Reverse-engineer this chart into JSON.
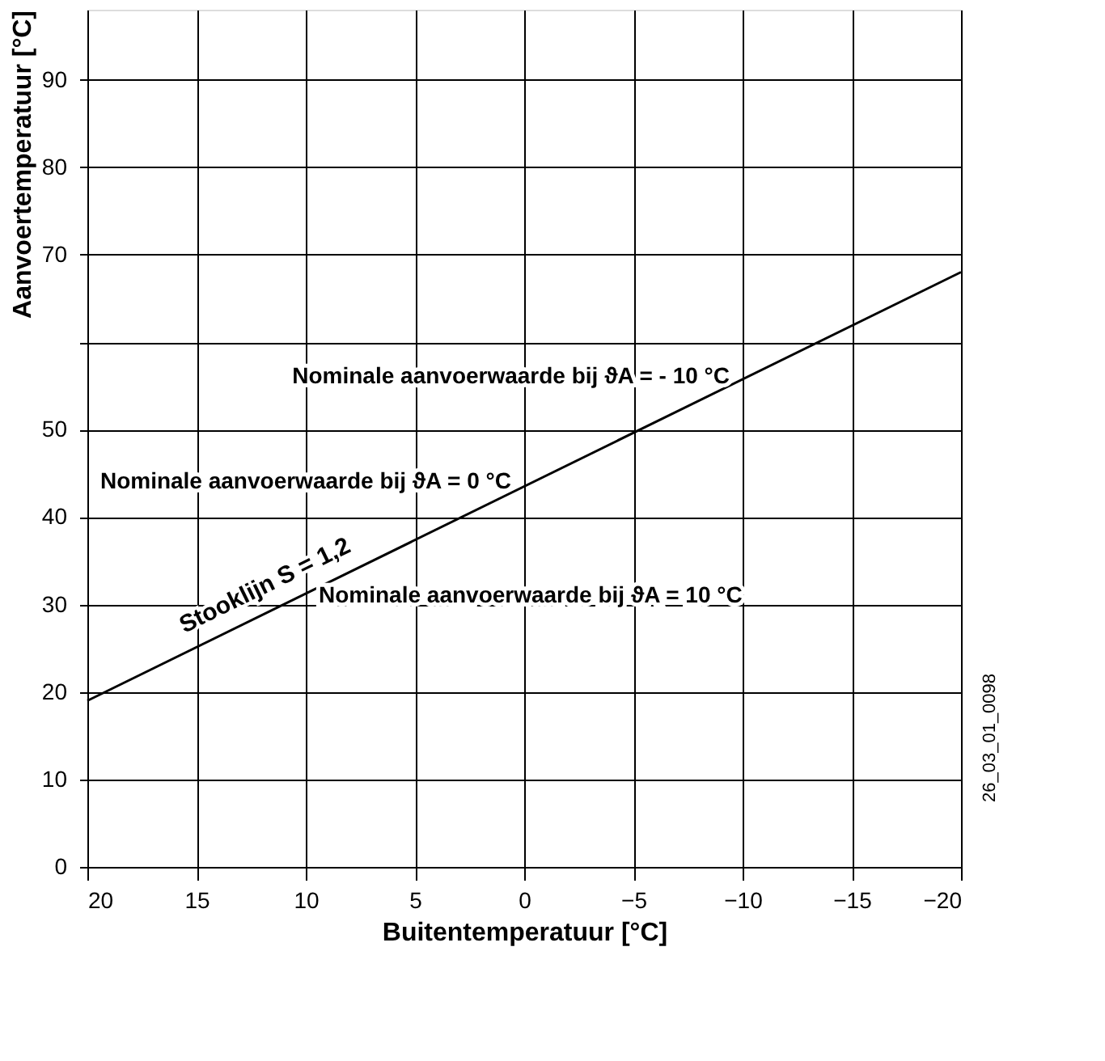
{
  "chart_data": {
    "type": "line",
    "xlabel": "Buitentemperatuur [°C]",
    "ylabel": "Aanvoertemperatuur [°C]",
    "xlim": [
      20,
      -20
    ],
    "ylim": [
      0,
      98
    ],
    "xticks": [
      20,
      15,
      10,
      5,
      0,
      -5,
      -10,
      -15,
      -20
    ],
    "yticks": [
      0,
      10,
      20,
      30,
      40,
      50,
      {
        "value": 60,
        "label": null
      },
      70,
      80,
      90
    ],
    "grid": true,
    "series": [
      {
        "name": "Stooklijn S = 1,2",
        "color": "#000000",
        "x": [
          20,
          -20
        ],
        "values": [
          19,
          68
        ]
      }
    ],
    "annotations": [
      {
        "text": "Nominale aanvoerwaarde bij ϑA = - 10 °C",
        "x": -10,
        "y": 56
      },
      {
        "text": "Nominale aanvoerwaarde bij ϑA = 0 °C",
        "x": 0,
        "y": 44
      },
      {
        "text": "Nominale aanvoerwaarde bij ϑA = 10 °C",
        "x": 10,
        "y": 31
      },
      "26_03_01_0098"
    ]
  }
}
